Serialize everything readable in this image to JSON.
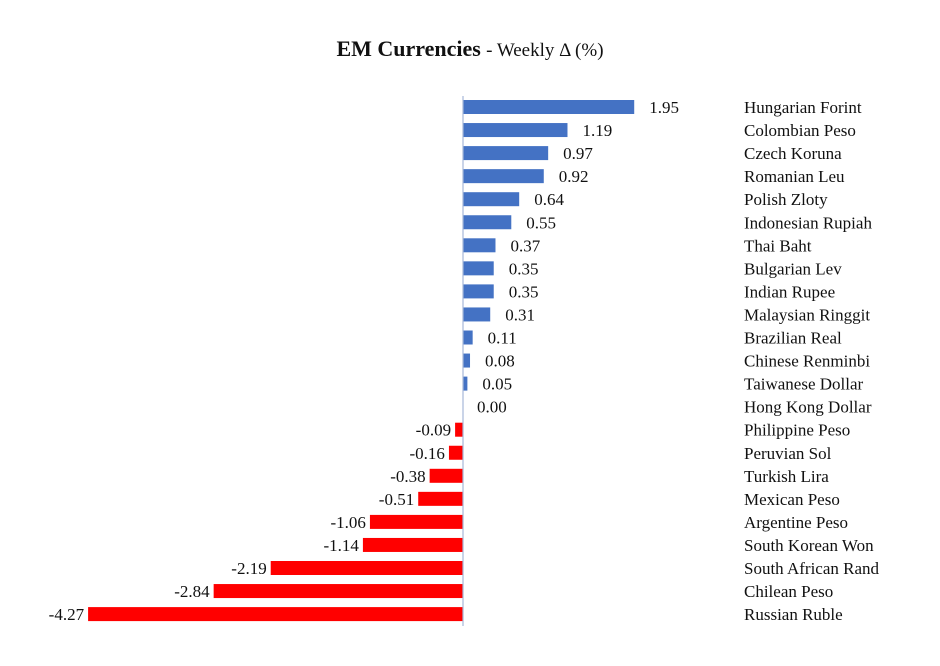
{
  "chart_data": {
    "type": "bar",
    "orientation": "horizontal",
    "title": "EM Currencies",
    "subtitle": "- Weekly Δ (%)",
    "categories": [
      "Hungarian Forint",
      "Colombian Peso",
      "Czech Koruna",
      "Romanian Leu",
      "Polish Zloty",
      "Indonesian Rupiah",
      "Thai Baht",
      "Bulgarian Lev",
      "Indian Rupee",
      "Malaysian Ringgit",
      "Brazilian Real",
      "Chinese Renminbi",
      "Taiwanese Dollar",
      "Hong Kong Dollar",
      "Philippine Peso",
      "Peruvian Sol",
      "Turkish Lira",
      "Mexican Peso",
      "Argentine Peso",
      "South Korean Won",
      "South African Rand",
      "Chilean Peso",
      "Russian Ruble"
    ],
    "values": [
      1.95,
      1.19,
      0.97,
      0.92,
      0.64,
      0.55,
      0.37,
      0.35,
      0.35,
      0.31,
      0.11,
      0.08,
      0.05,
      0.0,
      -0.09,
      -0.16,
      -0.38,
      -0.51,
      -1.06,
      -1.14,
      -2.19,
      -2.84,
      -4.27
    ],
    "data_labels": [
      "1.95",
      "1.19",
      "0.97",
      "0.92",
      "0.64",
      "0.55",
      "0.37",
      "0.35",
      "0.35",
      "0.31",
      "0.11",
      "0.08",
      "0.05",
      "0.00",
      "-0.09",
      "-0.16",
      "-0.38",
      "-0.51",
      "-1.06",
      "-1.14",
      "-2.19",
      "-2.84",
      "-4.27"
    ],
    "xlabel": "",
    "ylabel": "",
    "grid": false,
    "legend": "none",
    "colors": {
      "positive": "#4472C4",
      "negative": "#FF0000",
      "axis": "#A6B8D8"
    }
  }
}
